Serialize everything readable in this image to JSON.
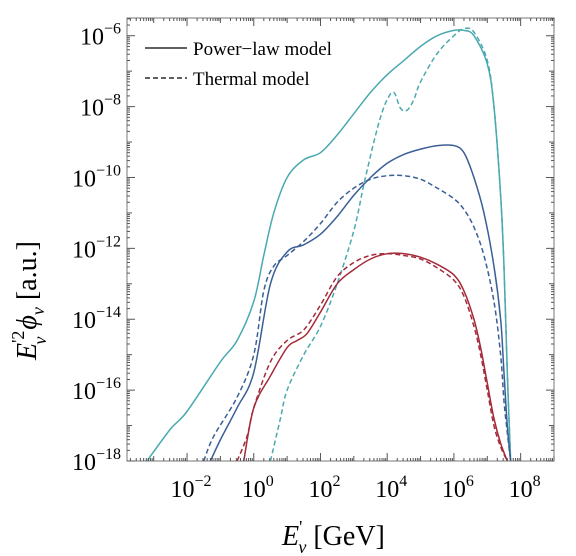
{
  "chart_data": {
    "type": "line",
    "title": "",
    "xlabel_main": "E",
    "xlabel_sup": "'",
    "xlabel_sub": "ν",
    "xlabel_unit": " [GeV]",
    "ylabel_main": "E",
    "ylabel_sup": "'2",
    "ylabel_sub": "ν",
    "ylabel_phi": " ϕ",
    "ylabel_phi_sub": "ν",
    "ylabel_unit": " [a.u.]",
    "xscale": "log",
    "yscale": "log",
    "xlim_log10": [
      -3.8,
      9.0
    ],
    "ylim_log10": [
      -18.0,
      -5.5
    ],
    "xticks_log10": [
      -2,
      0,
      2,
      4,
      6,
      8
    ],
    "yticks_log10": [
      -18,
      -16,
      -14,
      -12,
      -10,
      -8,
      -6
    ],
    "tick_base": "10",
    "grid": false,
    "legend_position": "top-left",
    "legend": [
      {
        "label": "Power−law model",
        "style": "solid"
      },
      {
        "label": "Thermal model",
        "style": "dashed"
      }
    ],
    "colors": {
      "teal": "#4aa9b0",
      "blue": "#3a5f96",
      "red": "#a52a3a"
    },
    "series": [
      {
        "style": "solid",
        "color": "teal",
        "x": [
          -3.2,
          -2.5,
          -2,
          -1,
          -0.5,
          0,
          0.3,
          0.6,
          1,
          1.5,
          2,
          2.5,
          3,
          3.5,
          4,
          4.5,
          5,
          5.5,
          6,
          6.3,
          6.6,
          7,
          7.2,
          7.4,
          7.5,
          7.6,
          7.7
        ],
        "y": [
          -18,
          -17.1,
          -16.6,
          -15.2,
          -14.6,
          -13.5,
          -12.2,
          -11,
          -10,
          -9.5,
          -9.3,
          -8.8,
          -8.2,
          -7.6,
          -7.1,
          -6.7,
          -6.3,
          -6,
          -5.85,
          -5.85,
          -6,
          -6.8,
          -8,
          -10.5,
          -12.5,
          -15.5,
          -18
        ]
      },
      {
        "style": "dashed",
        "color": "teal",
        "x": [
          0.5,
          0.8,
          1,
          1.5,
          2,
          2.5,
          3,
          3.3,
          3.6,
          3.8,
          4,
          4.2,
          4.4,
          4.6,
          4.8,
          5,
          5.5,
          6,
          6.3,
          6.6,
          7,
          7.2,
          7.4,
          7.5,
          7.6,
          7.7
        ],
        "y": [
          -18,
          -16.8,
          -16,
          -15,
          -14.2,
          -13,
          -11.5,
          -10.2,
          -9,
          -8.3,
          -7.8,
          -7.6,
          -8.05,
          -8.1,
          -7.8,
          -7.3,
          -6.5,
          -6,
          -5.8,
          -5.9,
          -6.7,
          -8,
          -10.5,
          -12.5,
          -15.5,
          -18
        ]
      },
      {
        "style": "solid",
        "color": "blue",
        "x": [
          -1.3,
          -1,
          -0.5,
          0,
          0.5,
          1,
          1.5,
          2,
          2.5,
          3,
          3.5,
          4,
          4.5,
          5,
          5.5,
          6,
          6.3,
          6.6,
          6.9,
          7.2,
          7.4,
          7.5,
          7.6,
          7.7
        ],
        "y": [
          -18,
          -17.4,
          -16.5,
          -15.5,
          -13,
          -12.1,
          -11.9,
          -11.6,
          -11.1,
          -10.5,
          -10,
          -9.6,
          -9.35,
          -9.2,
          -9.1,
          -9.1,
          -9.3,
          -10,
          -11,
          -12.5,
          -14,
          -15.5,
          -17,
          -18
        ]
      },
      {
        "style": "dashed",
        "color": "blue",
        "x": [
          -1.5,
          -1.2,
          -0.5,
          0,
          0.3,
          0.6,
          1,
          1.5,
          2,
          2.5,
          3,
          3.5,
          4,
          4.5,
          5,
          5.5,
          6,
          6.3,
          6.6,
          6.9,
          7.2,
          7.4,
          7.5,
          7.6,
          7.7
        ],
        "y": [
          -18,
          -17.3,
          -16.2,
          -15,
          -13.2,
          -12.5,
          -12.2,
          -11.8,
          -11.3,
          -10.7,
          -10.3,
          -10.05,
          -9.95,
          -9.95,
          -10.05,
          -10.3,
          -10.6,
          -10.9,
          -11.4,
          -12.2,
          -13.5,
          -15,
          -16.3,
          -17.2,
          -18
        ]
      },
      {
        "style": "solid",
        "color": "red",
        "x": [
          -0.3,
          0,
          0.5,
          1,
          1.3,
          1.6,
          2,
          2.5,
          3,
          3.5,
          4,
          4.5,
          5,
          5.5,
          6,
          6.3,
          6.6,
          6.8,
          7,
          7.2,
          7.4,
          7.6
        ],
        "y": [
          -18,
          -16.5,
          -15.6,
          -14.8,
          -14.6,
          -14.4,
          -13.8,
          -13.0,
          -12.6,
          -12.3,
          -12.15,
          -12.15,
          -12.25,
          -12.45,
          -12.75,
          -13.2,
          -14,
          -14.8,
          -15.8,
          -16.8,
          -17.5,
          -18
        ]
      },
      {
        "style": "dashed",
        "color": "red",
        "x": [
          -0.5,
          -0.2,
          0,
          0.5,
          1,
          1.5,
          2,
          2.5,
          3,
          3.5,
          4,
          4.5,
          5,
          5.5,
          6,
          6.3,
          6.6,
          6.8,
          7,
          7.2,
          7.4,
          7.6
        ],
        "y": [
          -18,
          -17.3,
          -16.5,
          -15.2,
          -14.6,
          -14.3,
          -13.6,
          -12.8,
          -12.4,
          -12.2,
          -12.15,
          -12.2,
          -12.3,
          -12.55,
          -12.9,
          -13.35,
          -14.2,
          -15,
          -16,
          -17,
          -17.6,
          -18
        ]
      }
    ]
  }
}
